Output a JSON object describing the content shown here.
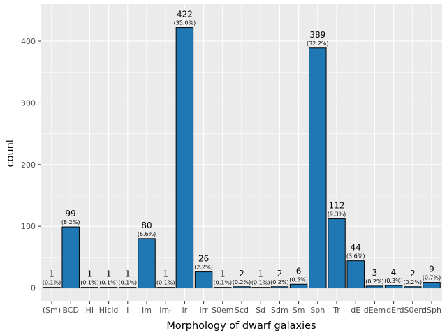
{
  "chart_data": {
    "type": "bar",
    "xlabel": "Morphology of dwarf galaxies",
    "ylabel": "count",
    "ylim": [
      -22,
      460
    ],
    "yticks": [
      0,
      100,
      200,
      300,
      400
    ],
    "grid": true,
    "bar_color": "#1f77b4",
    "bar_edge_color": "#000000",
    "panel_color": "#ebebeb",
    "categories": [
      "(Sm)",
      "BCD",
      "HI",
      "HIcld",
      "I",
      "Im",
      "Im-",
      "Ir",
      "Irr",
      "S0em",
      "Scd",
      "Sd",
      "Sdm",
      "Sm",
      "Sph",
      "Tr",
      "dE",
      "dEem",
      "dEn",
      "dS0em",
      "dSph"
    ],
    "values": [
      1,
      99,
      1,
      1,
      1,
      80,
      1,
      422,
      26,
      1,
      2,
      1,
      2,
      6,
      389,
      112,
      44,
      3,
      4,
      2,
      9
    ],
    "percent_labels": [
      "(0.1%)",
      "(8.2%)",
      "(0.1%)",
      "(0.1%)",
      "(0.1%)",
      "(6.6%)",
      "(0.1%)",
      "(35.0%)",
      "(2.2%)",
      "(0.1%)",
      "(0.2%)",
      "(0.1%)",
      "(0.2%)",
      "(0.5%)",
      "(32.2%)",
      "(9.3%)",
      "(3.6%)",
      "(0.2%)",
      "(0.3%)",
      "(0.2%)",
      "(0.7%)"
    ]
  }
}
